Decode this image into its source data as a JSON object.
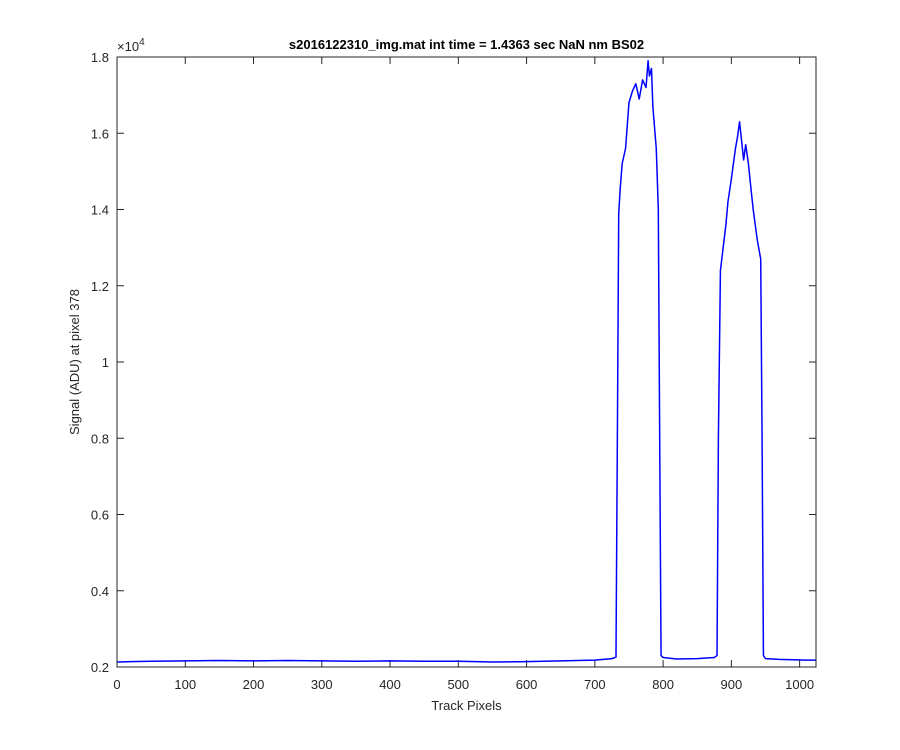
{
  "chart_data": {
    "type": "line",
    "title": "s2016122310_img.mat int time = 1.4363 sec  NaN nm BS02",
    "xlabel": "Track Pixels",
    "ylabel": "Signal (ADU) at pixel 378",
    "y_multiplier_base": "×10",
    "y_multiplier_exponent": "4",
    "xlim": [
      0,
      1024
    ],
    "ylim": [
      0.2,
      1.8
    ],
    "x_ticks": [
      0,
      100,
      200,
      300,
      400,
      500,
      600,
      700,
      800,
      900,
      1000
    ],
    "x_tick_labels": [
      "0",
      "100",
      "200",
      "300",
      "400",
      "500",
      "600",
      "700",
      "800",
      "900",
      "1000"
    ],
    "y_ticks": [
      0.2,
      0.4,
      0.6,
      0.8,
      1.0,
      1.2,
      1.4,
      1.6,
      1.8
    ],
    "y_tick_labels": [
      "0.2",
      "0.4",
      "0.6",
      "0.8",
      "1",
      "1.2",
      "1.4",
      "1.6",
      "1.8"
    ],
    "line_color": "#0000ff",
    "series": [
      {
        "x": [
          0,
          20,
          50,
          100,
          150,
          200,
          250,
          300,
          350,
          400,
          450,
          500,
          550,
          600,
          650,
          700,
          725,
          731,
          733,
          735,
          737,
          740,
          745,
          750,
          755,
          760,
          765,
          770,
          775,
          778,
          780,
          783,
          785,
          790,
          793,
          795,
          797,
          800,
          820,
          850,
          875,
          879,
          881,
          884,
          888,
          892,
          895,
          900,
          903,
          906,
          909,
          912,
          915,
          918,
          921,
          925,
          929,
          932,
          935,
          938,
          941,
          943,
          945,
          947,
          950,
          970,
          990,
          1010,
          1024
        ],
        "y": [
          0.213,
          0.214,
          0.215,
          0.216,
          0.217,
          0.216,
          0.217,
          0.216,
          0.215,
          0.216,
          0.215,
          0.215,
          0.213,
          0.214,
          0.216,
          0.218,
          0.222,
          0.226,
          0.8,
          1.39,
          1.45,
          1.52,
          1.56,
          1.68,
          1.71,
          1.73,
          1.69,
          1.74,
          1.72,
          1.79,
          1.75,
          1.77,
          1.67,
          1.56,
          1.4,
          0.8,
          0.23,
          0.225,
          0.221,
          0.222,
          0.225,
          0.23,
          0.8,
          1.24,
          1.3,
          1.36,
          1.42,
          1.48,
          1.52,
          1.56,
          1.59,
          1.63,
          1.58,
          1.53,
          1.57,
          1.52,
          1.45,
          1.4,
          1.36,
          1.32,
          1.29,
          1.27,
          0.8,
          0.23,
          0.222,
          0.22,
          0.219,
          0.218,
          0.218
        ]
      }
    ]
  }
}
